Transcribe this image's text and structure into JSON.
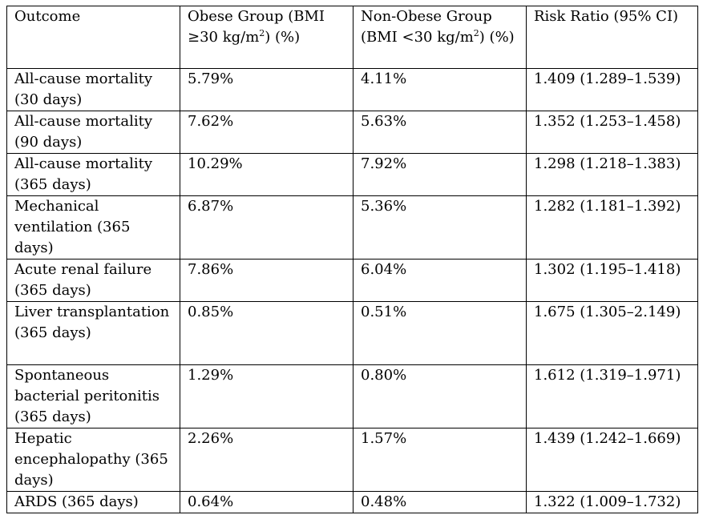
{
  "table": {
    "headers": [
      {
        "pre": "Outcome",
        "sup": "",
        "post": ""
      },
      {
        "pre": "Obese Group (BMI ≥30 kg/m",
        "sup": "2",
        "post": ") (%)"
      },
      {
        "pre": "Non-Obese Group (BMI <30 kg/m",
        "sup": "2",
        "post": ") (%)"
      },
      {
        "pre": "Risk Ratio (95% CI)",
        "sup": "",
        "post": ""
      }
    ],
    "rows": [
      [
        "All-cause mortality (30 days)",
        "5.79%",
        "4.11%",
        "1.409 (1.289–1.539)"
      ],
      [
        "All-cause mortality (90 days)",
        "7.62%",
        "5.63%",
        "1.352 (1.253–1.458)"
      ],
      [
        "All-cause mortality (365 days)",
        "10.29%",
        "7.92%",
        "1.298 (1.218–1.383)"
      ],
      [
        "Mechanical ventilation (365 days)",
        "6.87%",
        "5.36%",
        "1.282 (1.181–1.392)"
      ],
      [
        "Acute renal failure (365 days)",
        "7.86%",
        "6.04%",
        "1.302 (1.195–1.418)"
      ],
      [
        "Liver transplantation (365 days)",
        "0.85%",
        "0.51%",
        "1.675 (1.305–2.149)"
      ],
      [
        "Spontaneous bacterial peritonitis (365 days)",
        "1.29%",
        "0.80%",
        "1.612 (1.319–1.971)"
      ],
      [
        "Hepatic encephalopathy (365 days)",
        "2.26%",
        "1.57%",
        "1.439 (1.242–1.669)"
      ],
      [
        "ARDS (365 days)",
        "0.64%",
        "0.48%",
        "1.322 (1.009–1.732)"
      ]
    ]
  }
}
